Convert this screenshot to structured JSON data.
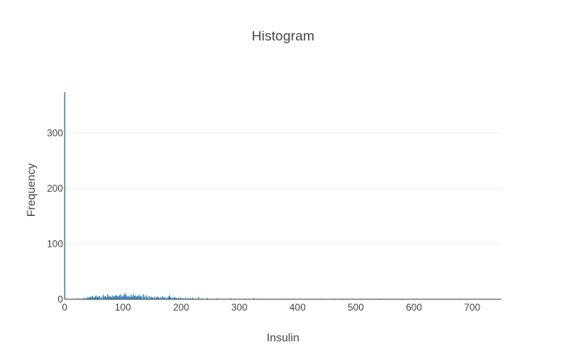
{
  "chart_data": {
    "type": "bar",
    "title": "Histogram",
    "xlabel": "Insulin",
    "ylabel": "Frequency",
    "xlim": [
      0,
      750
    ],
    "ylim": [
      0,
      374
    ],
    "x_ticks": [
      "0",
      "100",
      "200",
      "300",
      "400",
      "500",
      "600",
      "700"
    ],
    "y_ticks": [
      "0",
      "100",
      "200",
      "300"
    ],
    "grid": true,
    "bar_color": "#1f77b4",
    "axis_color": "#2a5f83",
    "x_tick_values": [
      0,
      100,
      200,
      300,
      400,
      500,
      600,
      700
    ],
    "y_tick_values": [
      0,
      100,
      200,
      300
    ],
    "bins": [
      {
        "x": 0,
        "y": 374
      },
      {
        "x": 15,
        "y": 1
      },
      {
        "x": 18,
        "y": 1
      },
      {
        "x": 22,
        "y": 2
      },
      {
        "x": 25,
        "y": 1
      },
      {
        "x": 28,
        "y": 1
      },
      {
        "x": 32,
        "y": 2
      },
      {
        "x": 35,
        "y": 3
      },
      {
        "x": 38,
        "y": 2
      },
      {
        "x": 40,
        "y": 4
      },
      {
        "x": 42,
        "y": 3
      },
      {
        "x": 44,
        "y": 5
      },
      {
        "x": 46,
        "y": 4
      },
      {
        "x": 48,
        "y": 6
      },
      {
        "x": 50,
        "y": 3
      },
      {
        "x": 52,
        "y": 5
      },
      {
        "x": 54,
        "y": 7
      },
      {
        "x": 56,
        "y": 4
      },
      {
        "x": 58,
        "y": 5
      },
      {
        "x": 60,
        "y": 6
      },
      {
        "x": 63,
        "y": 4
      },
      {
        "x": 66,
        "y": 8
      },
      {
        "x": 68,
        "y": 5
      },
      {
        "x": 70,
        "y": 6
      },
      {
        "x": 72,
        "y": 4
      },
      {
        "x": 74,
        "y": 9
      },
      {
        "x": 76,
        "y": 5
      },
      {
        "x": 78,
        "y": 6
      },
      {
        "x": 80,
        "y": 4
      },
      {
        "x": 82,
        "y": 7
      },
      {
        "x": 84,
        "y": 5
      },
      {
        "x": 86,
        "y": 6
      },
      {
        "x": 88,
        "y": 8
      },
      {
        "x": 90,
        "y": 6
      },
      {
        "x": 92,
        "y": 5
      },
      {
        "x": 94,
        "y": 7
      },
      {
        "x": 96,
        "y": 9
      },
      {
        "x": 98,
        "y": 5
      },
      {
        "x": 100,
        "y": 6
      },
      {
        "x": 102,
        "y": 8
      },
      {
        "x": 104,
        "y": 11
      },
      {
        "x": 106,
        "y": 7
      },
      {
        "x": 108,
        "y": 5
      },
      {
        "x": 110,
        "y": 6
      },
      {
        "x": 112,
        "y": 4
      },
      {
        "x": 114,
        "y": 8
      },
      {
        "x": 116,
        "y": 5
      },
      {
        "x": 118,
        "y": 9
      },
      {
        "x": 120,
        "y": 6
      },
      {
        "x": 122,
        "y": 7
      },
      {
        "x": 124,
        "y": 5
      },
      {
        "x": 126,
        "y": 6
      },
      {
        "x": 128,
        "y": 8
      },
      {
        "x": 130,
        "y": 5
      },
      {
        "x": 132,
        "y": 6
      },
      {
        "x": 135,
        "y": 9
      },
      {
        "x": 137,
        "y": 5
      },
      {
        "x": 140,
        "y": 7
      },
      {
        "x": 142,
        "y": 4
      },
      {
        "x": 145,
        "y": 6
      },
      {
        "x": 148,
        "y": 5
      },
      {
        "x": 150,
        "y": 4
      },
      {
        "x": 152,
        "y": 3
      },
      {
        "x": 155,
        "y": 5
      },
      {
        "x": 158,
        "y": 4
      },
      {
        "x": 160,
        "y": 5
      },
      {
        "x": 162,
        "y": 3
      },
      {
        "x": 165,
        "y": 4
      },
      {
        "x": 168,
        "y": 6
      },
      {
        "x": 170,
        "y": 3
      },
      {
        "x": 172,
        "y": 4
      },
      {
        "x": 175,
        "y": 3
      },
      {
        "x": 178,
        "y": 5
      },
      {
        "x": 180,
        "y": 7
      },
      {
        "x": 182,
        "y": 4
      },
      {
        "x": 185,
        "y": 3
      },
      {
        "x": 188,
        "y": 4
      },
      {
        "x": 190,
        "y": 3
      },
      {
        "x": 192,
        "y": 2
      },
      {
        "x": 195,
        "y": 3
      },
      {
        "x": 198,
        "y": 2
      },
      {
        "x": 200,
        "y": 3
      },
      {
        "x": 204,
        "y": 2
      },
      {
        "x": 208,
        "y": 3
      },
      {
        "x": 212,
        "y": 2
      },
      {
        "x": 216,
        "y": 2
      },
      {
        "x": 220,
        "y": 3
      },
      {
        "x": 225,
        "y": 2
      },
      {
        "x": 230,
        "y": 4
      },
      {
        "x": 235,
        "y": 2
      },
      {
        "x": 240,
        "y": 1
      },
      {
        "x": 245,
        "y": 2
      },
      {
        "x": 250,
        "y": 1
      },
      {
        "x": 256,
        "y": 1
      },
      {
        "x": 262,
        "y": 2
      },
      {
        "x": 270,
        "y": 1
      },
      {
        "x": 278,
        "y": 1
      },
      {
        "x": 285,
        "y": 2
      },
      {
        "x": 292,
        "y": 1
      },
      {
        "x": 300,
        "y": 1
      },
      {
        "x": 310,
        "y": 1
      },
      {
        "x": 318,
        "y": 1
      },
      {
        "x": 325,
        "y": 2
      },
      {
        "x": 335,
        "y": 1
      },
      {
        "x": 342,
        "y": 1
      },
      {
        "x": 360,
        "y": 1
      },
      {
        "x": 375,
        "y": 1
      },
      {
        "x": 392,
        "y": 1
      },
      {
        "x": 415,
        "y": 1
      },
      {
        "x": 440,
        "y": 1
      },
      {
        "x": 465,
        "y": 1
      },
      {
        "x": 478,
        "y": 1
      },
      {
        "x": 485,
        "y": 1
      },
      {
        "x": 495,
        "y": 1
      },
      {
        "x": 510,
        "y": 1
      },
      {
        "x": 540,
        "y": 1
      },
      {
        "x": 543,
        "y": 1
      },
      {
        "x": 545,
        "y": 1
      },
      {
        "x": 580,
        "y": 1
      },
      {
        "x": 600,
        "y": 1
      },
      {
        "x": 680,
        "y": 1
      },
      {
        "x": 744,
        "y": 1
      }
    ]
  }
}
